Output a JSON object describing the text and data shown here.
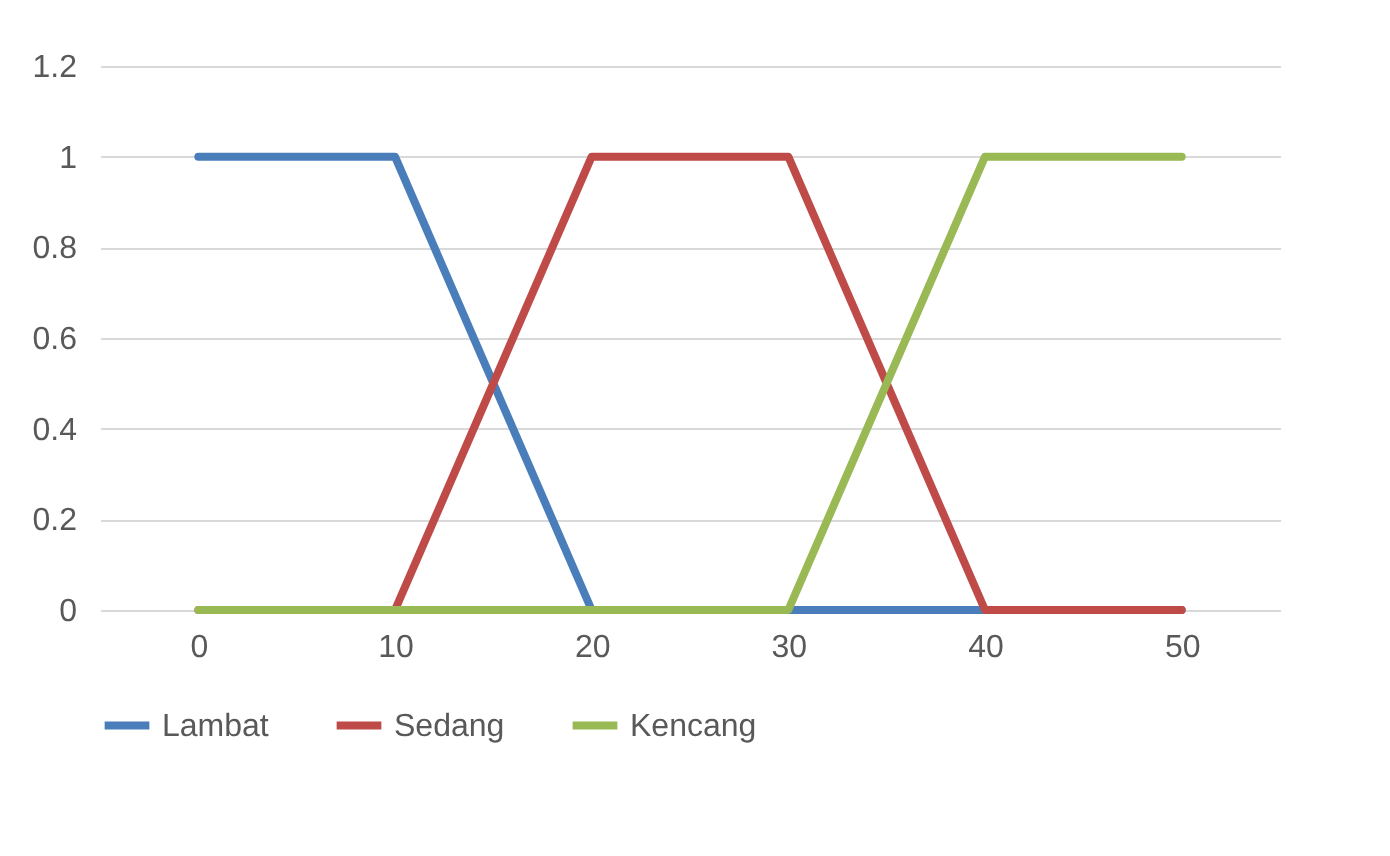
{
  "chart_data": {
    "type": "line",
    "categories": [
      "0",
      "10",
      "20",
      "30",
      "40",
      "50"
    ],
    "series": [
      {
        "name": "Lambat",
        "color": "#4a7ebb",
        "values": [
          1,
          1,
          0,
          0,
          0,
          0
        ]
      },
      {
        "name": "Sedang",
        "color": "#be4b48",
        "values": [
          0,
          0,
          1,
          1,
          0,
          0
        ]
      },
      {
        "name": "Kencang",
        "color": "#98b954",
        "values": [
          0,
          0,
          0,
          0,
          1,
          1
        ]
      }
    ],
    "ylim": [
      0,
      1.2
    ],
    "yticks": [
      0,
      0.2,
      0.4,
      0.6,
      0.8,
      1,
      1.2
    ],
    "grid": "y",
    "legend": "bottom",
    "marker": "none",
    "line_style": "solid"
  }
}
